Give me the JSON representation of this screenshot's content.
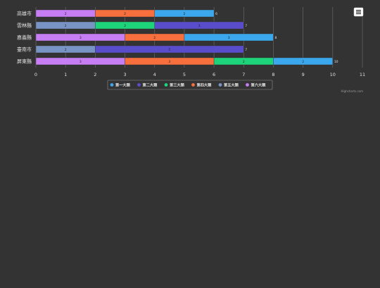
{
  "chart_data": {
    "type": "bar",
    "orientation": "horizontal",
    "stacked": true,
    "categories": [
      "高雄市",
      "雲林縣",
      "嘉義縣",
      "臺南市",
      "屏東縣"
    ],
    "xlim": [
      0,
      11
    ],
    "x_ticks": [
      "0",
      "1",
      "2",
      "3",
      "4",
      "5",
      "6",
      "7",
      "8",
      "9",
      "10",
      "11"
    ],
    "grid": true,
    "legend_position": "bottom-center",
    "series": [
      {
        "name": "第六大類",
        "color": "#c77df3",
        "values": [
          2,
          0,
          3,
          0,
          3
        ],
        "labels": [
          "2",
          "",
          "3",
          "",
          "3"
        ]
      },
      {
        "name": "第五大類",
        "color": "#7894c4",
        "values": [
          0,
          2,
          0,
          2,
          0
        ],
        "labels": [
          "",
          "2",
          "",
          "2",
          ""
        ]
      },
      {
        "name": "第四大類",
        "color": "#f86f3e",
        "values": [
          2,
          0,
          2,
          0,
          3
        ],
        "labels": [
          "2",
          "",
          "2",
          "",
          "3"
        ]
      },
      {
        "name": "第三大類",
        "color": "#1ed47a",
        "values": [
          0,
          2,
          0,
          0,
          2
        ],
        "labels": [
          "",
          "2",
          "",
          "",
          "2"
        ]
      },
      {
        "name": "第二大類",
        "color": "#5a4dcc",
        "values": [
          0,
          3,
          0,
          5,
          0
        ],
        "labels": [
          "",
          "3",
          "",
          "5",
          ""
        ]
      },
      {
        "name": "第一大類",
        "color": "#3ba7ec",
        "values": [
          2,
          0,
          3,
          0,
          2
        ],
        "labels": [
          "2",
          "",
          "3",
          "",
          "2"
        ]
      }
    ],
    "totals": [
      "6",
      "7",
      "8",
      "7",
      "10"
    ],
    "legend_order": [
      "第一大類",
      "第二大類",
      "第三大類",
      "第四大類",
      "第五大類",
      "第六大類"
    ]
  },
  "credits": "Highcharts.com",
  "menu_icon": "hamburger-menu-icon"
}
